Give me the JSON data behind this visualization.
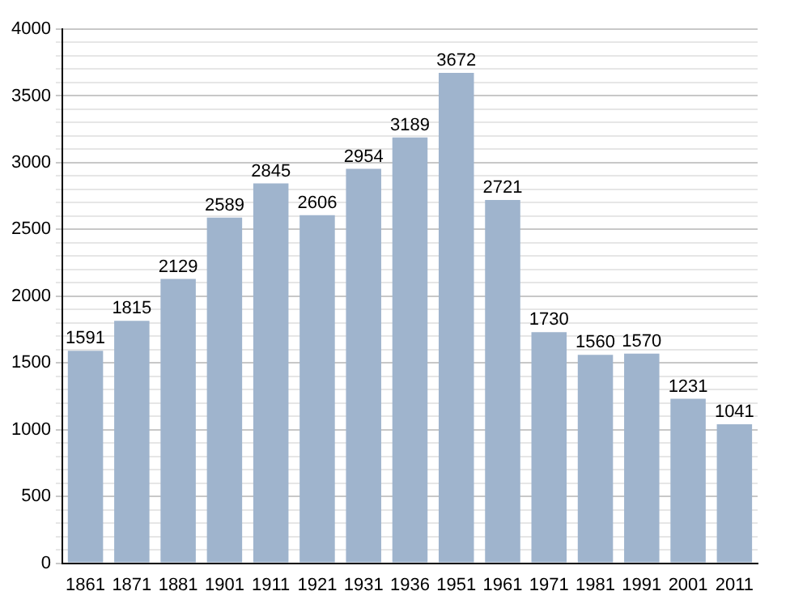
{
  "chart_data": {
    "type": "bar",
    "categories": [
      "1861",
      "1871",
      "1881",
      "1901",
      "1911",
      "1921",
      "1931",
      "1936",
      "1951",
      "1961",
      "1971",
      "1981",
      "1991",
      "2001",
      "2011"
    ],
    "values": [
      1591,
      1815,
      2129,
      2589,
      2845,
      2606,
      2954,
      3189,
      3672,
      2721,
      1730,
      1560,
      1570,
      1231,
      1041
    ],
    "color": "#9fb4cd",
    "ylim": [
      0,
      4000
    ],
    "yticks": [
      0,
      {
        "value": 100,
        "label": null
      },
      {
        "value": 200,
        "label": null
      },
      {
        "value": 300,
        "label": null
      },
      {
        "value": 400,
        "label": null
      },
      500,
      {
        "value": 600,
        "label": null
      },
      {
        "value": 700,
        "label": null
      },
      {
        "value": 800,
        "label": null
      },
      {
        "value": 900,
        "label": null
      },
      1000,
      {
        "value": 1100,
        "label": null
      },
      {
        "value": 1200,
        "label": null
      },
      {
        "value": 1300,
        "label": null
      },
      {
        "value": 1400,
        "label": null
      },
      1500,
      {
        "value": 1600,
        "label": null
      },
      {
        "value": 1700,
        "label": null
      },
      {
        "value": 1800,
        "label": null
      },
      {
        "value": 1900,
        "label": null
      },
      2000,
      {
        "value": 2100,
        "label": null
      },
      {
        "value": 2200,
        "label": null
      },
      {
        "value": 2300,
        "label": null
      },
      {
        "value": 2400,
        "label": null
      },
      2500,
      {
        "value": 2600,
        "label": null
      },
      {
        "value": 2700,
        "label": null
      },
      {
        "value": 2800,
        "label": null
      },
      {
        "value": 2900,
        "label": null
      },
      3000,
      {
        "value": 3100,
        "label": null
      },
      {
        "value": 3200,
        "label": null
      },
      {
        "value": 3300,
        "label": null
      },
      {
        "value": 3400,
        "label": null
      },
      3500,
      {
        "value": 3600,
        "label": null
      },
      {
        "value": 3700,
        "label": null
      },
      {
        "value": 3800,
        "label": null
      },
      {
        "value": 3900,
        "label": null
      },
      4000
    ],
    "grid": "y",
    "data_labels": true
  }
}
